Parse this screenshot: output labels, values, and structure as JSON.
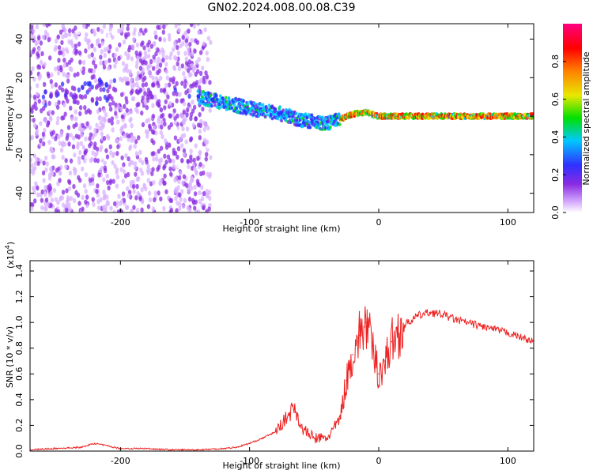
{
  "figure": {
    "title": "GN02.2024.008.00.08.C39"
  },
  "chart_data": [
    {
      "type": "heatmap",
      "xlabel": "Height of straight line (km)",
      "ylabel": "Frequency (Hz)",
      "xlim": [
        -270,
        120
      ],
      "ylim": [
        -50,
        48
      ],
      "x_ticks": [
        -200,
        -100,
        0,
        100
      ],
      "y_ticks": [
        -40,
        -20,
        0,
        20,
        40
      ],
      "colorbar": {
        "label": "Normalized spectral amplitude",
        "range": [
          0.0,
          1.0
        ],
        "ticks": [
          0.0,
          0.2,
          0.4,
          0.6,
          0.8
        ],
        "colors": [
          "#ffffff",
          "#d9b3ff",
          "#8a2be2",
          "#3030ff",
          "#00c8ff",
          "#00e000",
          "#e8e800",
          "#ff8000",
          "#ff0000",
          "#ff0080"
        ]
      },
      "ridge": {
        "x": [
          -140,
          -120,
          -100,
          -80,
          -60,
          -40,
          -20,
          -10,
          0,
          50,
          100,
          120
        ],
        "frequency": [
          10,
          7,
          4,
          2,
          -2,
          -4,
          1,
          2,
          0,
          0,
          0,
          0
        ]
      },
      "grid": false
    },
    {
      "type": "line",
      "xlabel": "Height of straight line (km)",
      "ylabel": "SNR (10 * v/v)",
      "y_multiplier": "(x10",
      "y_multiplier_exp": "4",
      "xlim": [
        -270,
        120
      ],
      "ylim": [
        0,
        1.48
      ],
      "x_ticks": [
        -200,
        -100,
        0,
        100
      ],
      "y_ticks": [
        0.0,
        0.2,
        0.4,
        0.6,
        0.8,
        1.0,
        1.2,
        1.4
      ],
      "color": "#ee2222",
      "x": [
        -270,
        -250,
        -230,
        -220,
        -200,
        -180,
        -160,
        -140,
        -120,
        -110,
        -100,
        -90,
        -80,
        -72,
        -65,
        -60,
        -50,
        -40,
        -30,
        -25,
        -20,
        -15,
        -10,
        -5,
        0,
        5,
        10,
        20,
        30,
        40,
        50,
        60,
        80,
        100,
        120
      ],
      "values": [
        0.01,
        0.02,
        0.03,
        0.06,
        0.02,
        0.02,
        0.01,
        0.01,
        0.02,
        0.03,
        0.06,
        0.1,
        0.15,
        0.25,
        0.35,
        0.18,
        0.1,
        0.1,
        0.25,
        0.55,
        0.75,
        0.9,
        1.0,
        0.8,
        0.6,
        0.7,
        0.85,
        0.98,
        1.05,
        1.08,
        1.06,
        1.02,
        0.97,
        0.92,
        0.85
      ],
      "grid": false
    }
  ]
}
